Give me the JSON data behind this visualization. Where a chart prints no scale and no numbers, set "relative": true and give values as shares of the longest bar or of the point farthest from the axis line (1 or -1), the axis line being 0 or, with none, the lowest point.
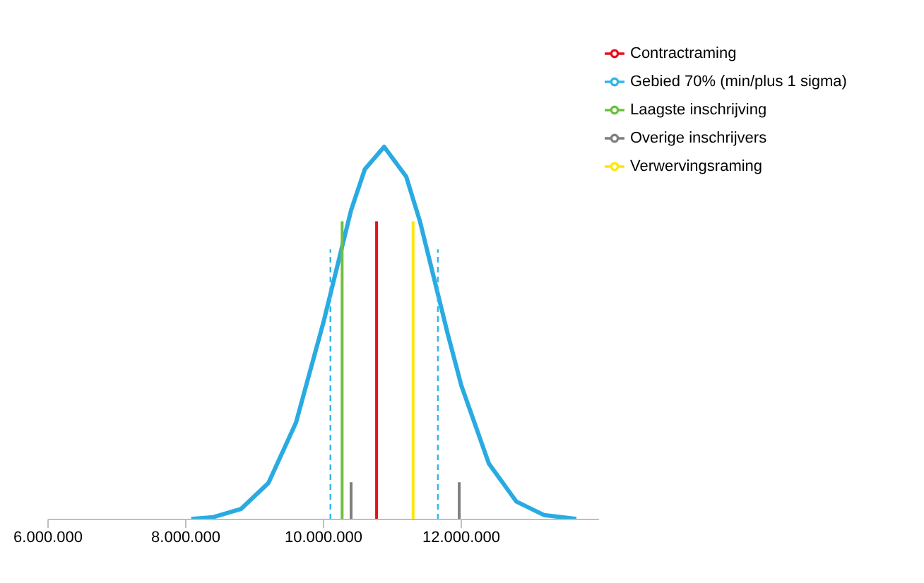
{
  "chart_data": {
    "type": "line",
    "relative": true,
    "marker": "none",
    "legend": "top right",
    "grid": false,
    "xlim": [
      6000000,
      14000000
    ],
    "xticks": [
      {
        "value": 6000000,
        "label": "6.000.000"
      },
      {
        "value": 8000000,
        "label": "8.000.000"
      },
      {
        "value": 10000000,
        "label": "10.000.000"
      },
      {
        "value": 12000000,
        "label": "12.000.000"
      }
    ],
    "series": [
      {
        "color": "#29abe2",
        "line_style": "solid",
        "x": [
          8080000,
          8400000,
          8800000,
          9200000,
          9600000,
          10000000,
          10200000,
          10400000,
          10600000,
          10880000,
          11200000,
          11400000,
          11600000,
          11800000,
          12000000,
          12400000,
          12800000,
          13200000,
          13670000
        ],
        "values": [
          0.0016,
          0.0064,
          0.028,
          0.098,
          0.26,
          0.53,
          0.68,
          0.83,
          0.94,
          1,
          0.92,
          0.8,
          0.65,
          0.5,
          0.36,
          0.15,
          0.048,
          0.012,
          0.0016
        ]
      },
      {
        "name": "Gebied 70% (min/plus 1 sigma)",
        "color": "#33b5e8",
        "line_style": "dashed",
        "x": [
          10100000,
          10100000,
          10900000,
          11660000,
          11660000
        ],
        "values": [
          0,
          0.725,
          null,
          0,
          0.725
        ]
      },
      {
        "name": "Contractraming",
        "color": "#e8101c",
        "line_style": "solid",
        "x": [
          10770000,
          10770000
        ],
        "values": [
          0,
          0.8
        ]
      },
      {
        "name": "Verwervingsraming",
        "color": "#ffe600",
        "line_style": "solid",
        "x": [
          11300000,
          11300000
        ],
        "values": [
          0,
          0.8
        ]
      },
      {
        "name": "Overige inschrijvers",
        "color": "#7f7f7f",
        "line_style": "solid",
        "x": [
          10400000,
          10400000,
          11200000,
          11970000,
          11970000
        ],
        "values": [
          0,
          0.1,
          null,
          0,
          0.1
        ]
      },
      {
        "name": "Laagste inschrijving",
        "color": "#70bf3f",
        "line_style": "solid",
        "x": [
          10270000,
          10270000
        ],
        "values": [
          0,
          0.8
        ]
      }
    ]
  }
}
